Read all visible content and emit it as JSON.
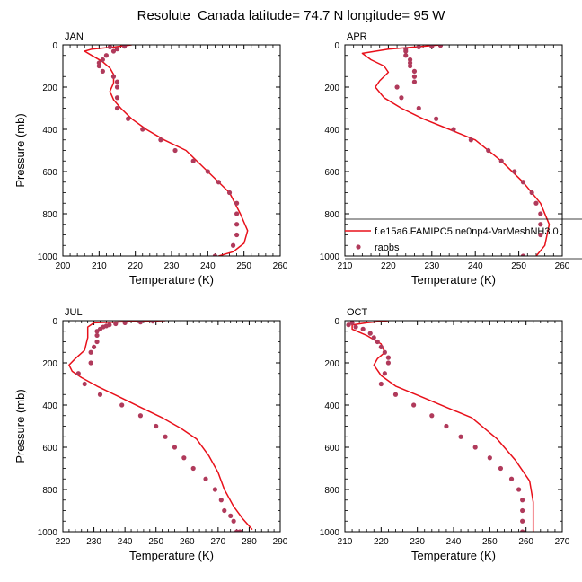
{
  "title": "Resolute_Canada  latitude= 74.7 N longitude= 95 W",
  "legend": {
    "model_label": "f.e15a6.FAMIPC5.ne0np4-VarMeshNH3.0",
    "obs_label": "raobs",
    "placement": "inside APR panel, lower right, clipped at right edge"
  },
  "colors": {
    "model_line": "#e8101a",
    "obs_marker": "#b03a5b",
    "axes": "#000000"
  },
  "chart_data": [
    {
      "type": "scatter",
      "panel": "JAN",
      "title": "JAN",
      "xlabel": "Temperature (K)",
      "ylabel": "Pressure (mb)",
      "xlim": [
        200,
        260
      ],
      "ylim": [
        1000,
        0
      ],
      "xticks": [
        200,
        210,
        220,
        230,
        240,
        250,
        260
      ],
      "yticks": [
        0,
        200,
        400,
        600,
        800,
        1000
      ],
      "series": [
        {
          "name": "f.e15a6.FAMIPC5.ne0np4-VarMeshNH3.0",
          "kind": "line",
          "x": [
            219,
            214,
            208,
            206,
            208,
            211,
            213,
            214,
            214,
            213,
            214,
            216,
            219,
            223,
            228,
            234,
            240,
            246,
            249,
            251,
            250,
            247,
            243
          ],
          "y": [
            0,
            10,
            20,
            30,
            50,
            80,
            110,
            140,
            180,
            220,
            260,
            300,
            350,
            400,
            450,
            500,
            600,
            700,
            800,
            880,
            940,
            980,
            1000
          ]
        },
        {
          "name": "raobs",
          "kind": "points",
          "x": [
            217,
            213,
            215,
            214,
            212,
            211,
            210,
            210,
            211,
            214,
            215,
            215,
            215,
            215,
            218,
            222,
            227,
            231,
            236,
            240,
            243,
            246,
            248,
            248,
            248,
            248,
            247,
            242
          ],
          "y": [
            7,
            10,
            20,
            30,
            50,
            70,
            85,
            100,
            125,
            150,
            175,
            200,
            250,
            300,
            350,
            400,
            450,
            500,
            550,
            600,
            650,
            700,
            750,
            800,
            850,
            900,
            950,
            1000
          ]
        }
      ]
    },
    {
      "type": "scatter",
      "panel": "APR",
      "title": "APR",
      "xlabel": "Temperature (K)",
      "ylabel": "",
      "xlim": [
        210,
        260
      ],
      "ylim": [
        1000,
        0
      ],
      "xticks": [
        210,
        220,
        230,
        240,
        250,
        260
      ],
      "yticks": [
        0,
        200,
        400,
        600,
        800,
        1000
      ],
      "series": [
        {
          "name": "f.e15a6.FAMIPC5.ne0np4-VarMeshNH3.0",
          "kind": "line",
          "x": [
            232,
            226,
            220,
            214,
            216,
            219,
            220,
            218,
            217,
            219,
            223,
            228,
            234,
            240,
            246,
            251,
            255,
            257,
            256,
            254
          ],
          "y": [
            0,
            10,
            20,
            40,
            70,
            100,
            130,
            170,
            200,
            250,
            300,
            350,
            400,
            450,
            550,
            650,
            750,
            850,
            950,
            1000
          ]
        },
        {
          "name": "raobs",
          "kind": "points",
          "x": [
            232,
            230,
            227,
            224,
            224,
            224,
            225,
            225,
            225,
            226,
            226,
            226,
            222,
            223,
            227,
            231,
            235,
            239,
            243,
            246,
            249,
            251,
            253,
            254,
            255,
            255,
            255,
            251
          ],
          "y": [
            3,
            7,
            10,
            20,
            30,
            50,
            70,
            85,
            100,
            125,
            150,
            175,
            200,
            250,
            300,
            350,
            400,
            450,
            500,
            550,
            600,
            650,
            700,
            750,
            800,
            850,
            900,
            1000
          ]
        }
      ]
    },
    {
      "type": "scatter",
      "panel": "JUL",
      "title": "JUL",
      "xlabel": "Temperature (K)",
      "ylabel": "Pressure (mb)",
      "xlim": [
        220,
        290
      ],
      "ylim": [
        1000,
        0
      ],
      "xticks": [
        220,
        230,
        240,
        250,
        260,
        270,
        280,
        290
      ],
      "yticks": [
        0,
        200,
        400,
        600,
        800,
        1000
      ],
      "series": [
        {
          "name": "f.e15a6.FAMIPC5.ne0np4-VarMeshNH3.0",
          "kind": "line",
          "x": [
            253,
            240,
            230,
            228,
            228,
            227,
            224,
            222,
            223,
            226,
            231,
            238,
            245,
            252,
            258,
            263,
            267,
            270,
            272,
            275,
            278,
            281
          ],
          "y": [
            0,
            5,
            10,
            30,
            80,
            140,
            180,
            210,
            240,
            270,
            310,
            360,
            410,
            460,
            510,
            560,
            640,
            720,
            800,
            880,
            940,
            990
          ]
        },
        {
          "name": "raobs",
          "kind": "points",
          "x": [
            249,
            245,
            240,
            237,
            235,
            234,
            233,
            232,
            231,
            231,
            231,
            230,
            229,
            229,
            225,
            227,
            232,
            239,
            245,
            250,
            253,
            256,
            259,
            262,
            266,
            269,
            271,
            272,
            274,
            275,
            276,
            277
          ],
          "y": [
            3,
            7,
            10,
            15,
            20,
            25,
            30,
            40,
            50,
            70,
            100,
            125,
            150,
            200,
            250,
            300,
            350,
            400,
            450,
            500,
            550,
            600,
            650,
            700,
            750,
            800,
            850,
            900,
            925,
            950,
            1000,
            1000
          ]
        }
      ]
    },
    {
      "type": "scatter",
      "panel": "OCT",
      "title": "OCT",
      "xlabel": "Temperature (K)",
      "ylabel": "",
      "xlim": [
        210,
        270
      ],
      "ylim": [
        1000,
        0
      ],
      "xticks": [
        210,
        220,
        230,
        240,
        250,
        260,
        270
      ],
      "yticks": [
        0,
        200,
        400,
        600,
        800,
        1000
      ],
      "series": [
        {
          "name": "f.e15a6.FAMIPC5.ne0np4-VarMeshNH3.0",
          "kind": "line",
          "x": [
            222,
            216,
            212,
            212,
            216,
            220,
            221,
            219,
            218,
            220,
            224,
            231,
            238,
            245,
            252,
            257,
            261,
            262,
            262
          ],
          "y": [
            0,
            10,
            20,
            40,
            70,
            110,
            150,
            180,
            210,
            260,
            310,
            360,
            410,
            460,
            560,
            660,
            760,
            860,
            1000
          ]
        },
        {
          "name": "raobs",
          "kind": "points",
          "x": [
            212,
            211,
            213,
            215,
            217,
            218,
            219,
            220,
            221,
            222,
            222,
            221,
            220,
            224,
            229,
            234,
            238,
            242,
            246,
            250,
            253,
            256,
            258,
            259,
            259,
            259,
            259
          ],
          "y": [
            10,
            20,
            30,
            40,
            60,
            80,
            100,
            125,
            150,
            175,
            200,
            250,
            300,
            350,
            400,
            450,
            500,
            550,
            600,
            650,
            700,
            750,
            800,
            850,
            900,
            950,
            1000
          ]
        }
      ]
    }
  ]
}
